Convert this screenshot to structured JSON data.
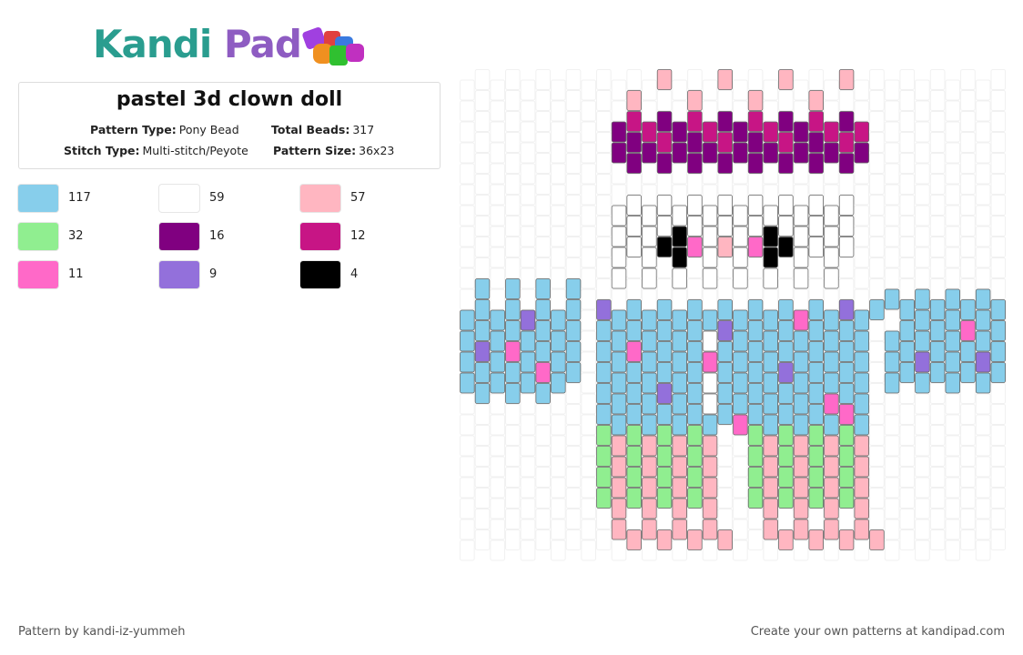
{
  "brand": [
    "Kandi",
    "Pad"
  ],
  "pattern": {
    "title": "pastel 3d clown doll",
    "fields": [
      {
        "label": "Pattern Type:",
        "value": "Pony Bead"
      },
      {
        "label": "Total Beads:",
        "value": 317
      },
      {
        "label": "Stitch Type:",
        "value": "Multi-stitch/Peyote"
      },
      {
        "label": "Pattern Size:",
        "value": "36x23"
      }
    ]
  },
  "colors": [
    {
      "color": "#87ceeb",
      "count": 117
    },
    {
      "color": "#ffffff",
      "count": 59
    },
    {
      "color": "#ffb6c1",
      "count": 57
    },
    {
      "color": "#90ee90",
      "count": 32
    },
    {
      "color": "#800080",
      "count": 16
    },
    {
      "color": "#c71585",
      "count": 12
    },
    {
      "color": "#ff69c8",
      "count": 11
    },
    {
      "color": "#9370db",
      "count": 9
    },
    {
      "color": "#000000",
      "count": 4
    }
  ],
  "footer": {
    "author": "Pattern by kandi-iz-yummeh",
    "promo": "Create your own patterns at kandipad.com"
  }
}
